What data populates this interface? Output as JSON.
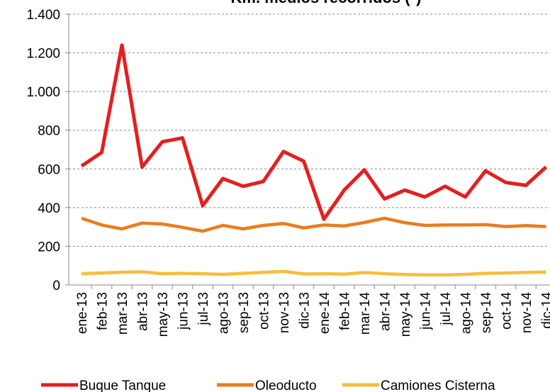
{
  "chart_data": {
    "type": "line",
    "title": "Km. medios recorridos (*)",
    "categories": [
      "ene-13",
      "feb-13",
      "mar-13",
      "abr-13",
      "may-13",
      "jun-13",
      "jul-13",
      "ago-13",
      "sep-13",
      "oct-13",
      "nov-13",
      "dic-13",
      "ene-14",
      "feb-14",
      "mar-14",
      "abr-14",
      "may-14",
      "jun-14",
      "jul-14",
      "ago-14",
      "sep-14",
      "oct-14",
      "nov-14",
      "dic-14"
    ],
    "series": [
      {
        "name": "Buque Tanque",
        "color": "#e41f1f",
        "values": [
          615,
          685,
          1240,
          610,
          740,
          760,
          410,
          550,
          510,
          535,
          690,
          640,
          340,
          490,
          595,
          445,
          490,
          455,
          510,
          455,
          590,
          530,
          515,
          610
        ]
      },
      {
        "name": "Oleoducto",
        "color": "#ec7b1e",
        "values": [
          345,
          310,
          290,
          320,
          315,
          298,
          278,
          308,
          290,
          308,
          318,
          295,
          310,
          305,
          323,
          345,
          322,
          308,
          310,
          310,
          312,
          302,
          307,
          302
        ]
      },
      {
        "name": "Camiones Cisterna",
        "color": "#f5be3c",
        "values": [
          58,
          62,
          66,
          68,
          58,
          60,
          58,
          55,
          60,
          65,
          70,
          57,
          58,
          56,
          64,
          58,
          54,
          52,
          52,
          55,
          60,
          62,
          65,
          67
        ]
      }
    ],
    "ylim": [
      0,
      1400
    ],
    "yticks": [
      0,
      200,
      400,
      600,
      800,
      {
        "value": 1000,
        "label": "1.000"
      },
      {
        "value": 1200,
        "label": "1.200"
      },
      {
        "value": 1400,
        "label": "1.400"
      }
    ],
    "grid": true,
    "legend": "bottom"
  }
}
